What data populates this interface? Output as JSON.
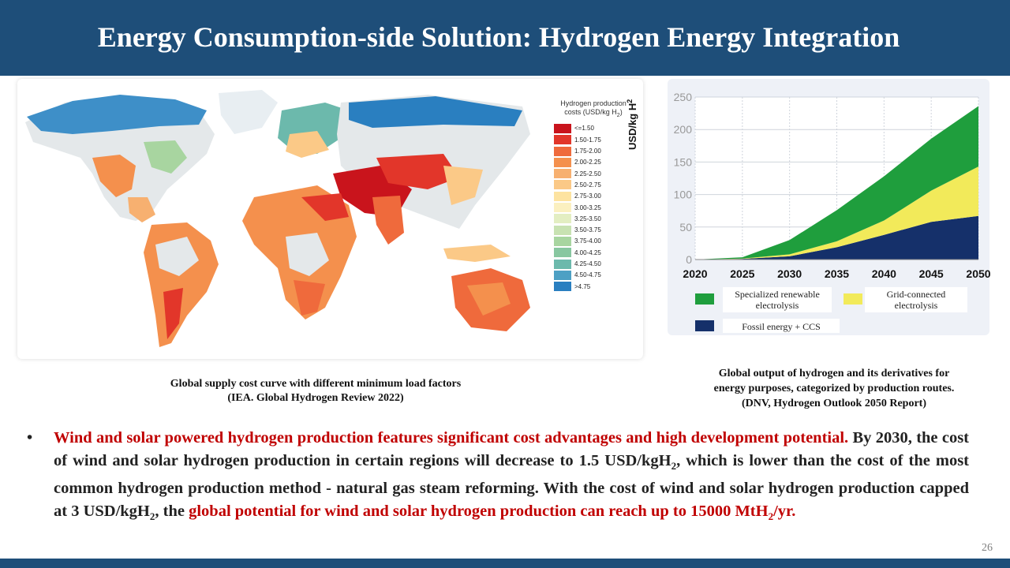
{
  "title": "Energy Consumption-side Solution: Hydrogen Energy Integration",
  "page_number": "26",
  "map": {
    "legend_title_line1": "Hydrogen production",
    "legend_title_line2": "costs (USD/kg H",
    "legend_title_sub": "2",
    "legend_title_end": ")",
    "legend": [
      {
        "label": "<=1.50",
        "color": "#c9141c"
      },
      {
        "label": "1.50-1.75",
        "color": "#e2362a"
      },
      {
        "label": "1.75-2.00",
        "color": "#ef6a3c"
      },
      {
        "label": "2.00-2.25",
        "color": "#f4904d"
      },
      {
        "label": "2.25-2.50",
        "color": "#f7b070"
      },
      {
        "label": "2.50-2.75",
        "color": "#fbc987"
      },
      {
        "label": "2.75-3.00",
        "color": "#fde3a0"
      },
      {
        "label": "3.00-3.25",
        "color": "#fbf0c0"
      },
      {
        "label": "3.25-3.50",
        "color": "#e3eec2"
      },
      {
        "label": "3.50-3.75",
        "color": "#c8e2b2"
      },
      {
        "label": "3.75-4.00",
        "color": "#a8d5a0"
      },
      {
        "label": "4.00-4.25",
        "color": "#88c7a0"
      },
      {
        "label": "4.25-4.50",
        "color": "#6cb9ac"
      },
      {
        "label": "4.50-4.75",
        "color": "#4da0c4"
      },
      {
        "label": ">4.75",
        "color": "#2a7fc0"
      }
    ],
    "caption_line1": "Global supply cost curve with different minimum load factors",
    "caption_line2": "(IEA. Global Hydrogen Review 2022)"
  },
  "chart_data": {
    "type": "area",
    "stacked": true,
    "ylabel": "USD/kg H",
    "ylabel_sub": "2",
    "x": [
      2020,
      2025,
      2030,
      2035,
      2040,
      2045,
      2050
    ],
    "xticks": [
      "2020",
      "2025",
      "2030",
      "2035",
      "2040",
      "2045",
      "2050"
    ],
    "yticks": [
      "0",
      "50",
      "100",
      "150",
      "200",
      "250"
    ],
    "ylim": [
      0,
      250
    ],
    "xlim": [
      2020,
      2050
    ],
    "grid": true,
    "series": [
      {
        "name": "Fossil energy + CCS",
        "color": "#15306a",
        "values": [
          0,
          1,
          5,
          19,
          38,
          58,
          67
        ]
      },
      {
        "name": "Grid-connected electrolysis",
        "color": "#f2ea5a",
        "values": [
          0,
          0.5,
          3,
          9,
          22,
          48,
          76
        ]
      },
      {
        "name": "Specialized renewable electrolysis",
        "color": "#1f9e3d",
        "values": [
          0,
          2,
          22,
          48,
          68,
          80,
          93
        ]
      }
    ],
    "legend_labels": {
      "renewable_line1": "Specialized renewable",
      "renewable_line2": "electrolysis",
      "grid_line1": "Grid-connected",
      "grid_line2": "electrolysis",
      "fossil": "Fossil energy + CCS"
    },
    "legend_colors": {
      "renewable": "#1f9e3d",
      "grid": "#f2ea5a",
      "fossil": "#15306a"
    },
    "caption_line1": "Global output of hydrogen and its derivatives for",
    "caption_line2": "energy purposes, categorized by production routes.",
    "caption_line3": "(DNV, Hydrogen Outlook 2050 Report)"
  },
  "bullet": {
    "dot": "•",
    "red1": "Wind and solar powered hydrogen production features significant cost advantages and high development potential.",
    "black1": " By 2030, the cost of wind and solar hydrogen production in certain regions will decrease to 1.5 USD/kgH",
    "sub1": "2",
    "black2": ", which is lower than the cost of the most common hydrogen production method - natural gas steam reforming. With the cost of wind and solar hydrogen production capped at 3 USD/kgH",
    "sub2": "2",
    "black3": ", the ",
    "red2": "global potential for wind and solar hydrogen production can reach up to 15000 MtH",
    "sub3": "2",
    "red3": "/yr."
  }
}
